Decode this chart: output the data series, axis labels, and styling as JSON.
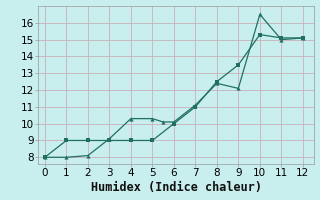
{
  "line1_x": [
    0,
    1,
    2,
    3,
    4,
    5,
    6,
    7,
    8,
    9,
    10,
    11,
    12
  ],
  "line1_y": [
    8,
    9,
    9,
    9,
    9,
    9,
    10,
    11,
    12.5,
    13.5,
    15.3,
    15.1,
    15.1
  ],
  "line2_x": [
    0,
    1,
    2,
    3,
    4,
    5,
    5.5,
    6,
    7,
    8,
    9,
    10,
    11,
    12
  ],
  "line2_y": [
    8,
    8,
    8.1,
    9.1,
    10.3,
    10.3,
    10.1,
    10.1,
    11.1,
    12.4,
    12.1,
    16.5,
    15.0,
    15.1
  ],
  "color": "#207060",
  "bg_color": "#c8eeee",
  "grid_major_color": "#b8d8d8",
  "grid_minor_color": "#d4ecec",
  "xlabel": "Humidex (Indice chaleur)",
  "xlim": [
    -0.3,
    12.5
  ],
  "ylim": [
    7.6,
    17.0
  ],
  "xticks": [
    0,
    1,
    2,
    3,
    4,
    5,
    6,
    7,
    8,
    9,
    10,
    11,
    12
  ],
  "yticks": [
    8,
    9,
    10,
    11,
    12,
    13,
    14,
    15,
    16
  ],
  "xlabel_fontsize": 8.5,
  "tick_fontsize": 7.5
}
